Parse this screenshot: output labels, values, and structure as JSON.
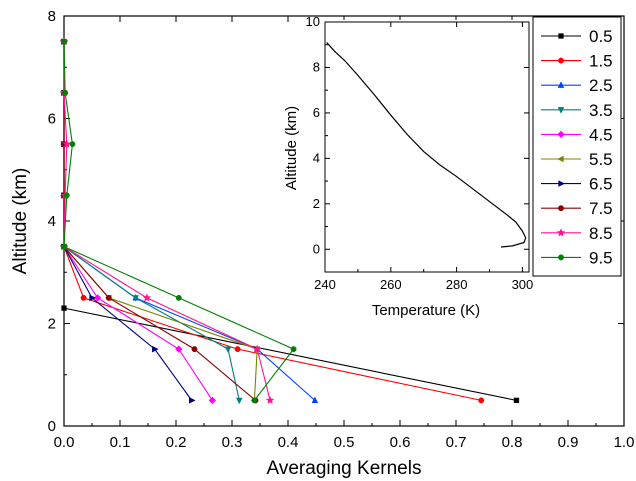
{
  "chart_data": [
    {
      "type": "line",
      "xlabel": "Averaging Kernels",
      "ylabel": "Altitude (km)",
      "xlim": [
        0,
        1.0
      ],
      "ylim": [
        0,
        8
      ],
      "xticks": [
        "0.0",
        "0.1",
        "0.2",
        "0.3",
        "0.4",
        "0.5",
        "0.6",
        "0.7",
        "0.8",
        "0.9",
        "1.0"
      ],
      "yticks": [
        "0",
        "2",
        "4",
        "6",
        "8"
      ],
      "legend_position": "top-right",
      "series": [
        {
          "name": "0.5",
          "color": "#000000",
          "marker": "square",
          "points": [
            [
              0.808,
              0.5
            ],
            [
              0,
              2.3
            ]
          ]
        },
        {
          "name": "1.5",
          "color": "#ff0000",
          "marker": "circle",
          "points": [
            [
              0.745,
              0.5
            ],
            [
              0.31,
              1.5
            ],
            [
              0.035,
              2.5
            ],
            [
              0,
              3.5
            ],
            [
              0,
              4.5
            ],
            [
              0,
              5.5
            ],
            [
              0,
              6.5
            ],
            [
              0,
              7.5
            ]
          ]
        },
        {
          "name": "2.5",
          "color": "#0044ff",
          "marker": "triangle-up",
          "points": [
            [
              0.448,
              0.5
            ],
            [
              0.345,
              1.5
            ],
            [
              0.128,
              2.5
            ],
            [
              0,
              3.5
            ],
            [
              0,
              4.5
            ],
            [
              0,
              5.5
            ],
            [
              0,
              6.5
            ],
            [
              0,
              7.5
            ]
          ]
        },
        {
          "name": "3.5",
          "color": "#008080",
          "marker": "triangle-down",
          "points": [
            [
              0.313,
              0.5
            ],
            [
              0.293,
              1.5
            ],
            [
              0.128,
              2.5
            ],
            [
              0,
              3.5
            ],
            [
              0,
              4.5
            ],
            [
              0,
              5.5
            ],
            [
              0,
              6.5
            ],
            [
              0,
              7.5
            ]
          ]
        },
        {
          "name": "4.5",
          "color": "#ff00ff",
          "marker": "diamond",
          "points": [
            [
              0.265,
              0.5
            ],
            [
              0.205,
              1.5
            ],
            [
              0.06,
              2.5
            ],
            [
              0,
              3.5
            ],
            [
              0,
              4.5
            ],
            [
              0,
              5.5
            ],
            [
              0,
              6.5
            ],
            [
              0,
              7.5
            ]
          ]
        },
        {
          "name": "5.5",
          "color": "#808000",
          "marker": "triangle-left",
          "points": [
            [
              0.34,
              0.5
            ],
            [
              0.345,
              1.5
            ],
            [
              0.08,
              2.5
            ],
            [
              0,
              3.5
            ],
            [
              0,
              4.5
            ],
            [
              0,
              5.5
            ],
            [
              0,
              6.5
            ],
            [
              0,
              7.5
            ]
          ]
        },
        {
          "name": "6.5",
          "color": "#000080",
          "marker": "triangle-right",
          "points": [
            [
              0.228,
              0.5
            ],
            [
              0.162,
              1.5
            ],
            [
              0.05,
              2.5
            ],
            [
              0,
              3.5
            ],
            [
              0,
              4.5
            ],
            [
              0,
              5.5
            ],
            [
              0,
              6.5
            ],
            [
              0,
              7.5
            ]
          ]
        },
        {
          "name": "7.5",
          "color": "#8b0000",
          "marker": "hexagon",
          "points": [
            [
              0.342,
              0.5
            ],
            [
              0.233,
              1.5
            ],
            [
              0.08,
              2.5
            ],
            [
              0,
              3.5
            ],
            [
              0,
              4.5
            ],
            [
              0,
              5.5
            ],
            [
              0,
              6.5
            ],
            [
              0,
              7.5
            ]
          ]
        },
        {
          "name": "8.5",
          "color": "#ff1493",
          "marker": "star",
          "points": [
            [
              0.368,
              0.5
            ],
            [
              0.345,
              1.5
            ],
            [
              0.148,
              2.5
            ],
            [
              0,
              3.5
            ],
            [
              0.002,
              4.5
            ],
            [
              0.005,
              5.5
            ],
            [
              0,
              6.5
            ],
            [
              0,
              7.5
            ]
          ]
        },
        {
          "name": "9.5",
          "color": "#008000",
          "marker": "pentagon",
          "points": [
            [
              0.34,
              0.5
            ],
            [
              0.41,
              1.5
            ],
            [
              0.205,
              2.5
            ],
            [
              0,
              3.5
            ],
            [
              0.005,
              4.5
            ],
            [
              0.015,
              5.5
            ],
            [
              0.002,
              6.5
            ],
            [
              0,
              7.5
            ]
          ]
        }
      ]
    },
    {
      "type": "line",
      "xlabel": "Temperature (K)",
      "ylabel": "Altitude (km)",
      "xlim": [
        240,
        302
      ],
      "ylim": [
        -1,
        10
      ],
      "xticks": [
        "240",
        "260",
        "280",
        "300"
      ],
      "yticks": [
        "0",
        "2",
        "4",
        "6",
        "8",
        "10"
      ],
      "series": [
        {
          "name": "",
          "color": "#000000",
          "points": [
            [
              240.5,
              9.1
            ],
            [
              243,
              8.7
            ],
            [
              246,
              8.3
            ],
            [
              250,
              7.65
            ],
            [
              255,
              6.8
            ],
            [
              260,
              5.9
            ],
            [
              265,
              5.05
            ],
            [
              270,
              4.3
            ],
            [
              275,
              3.7
            ],
            [
              280,
              3.2
            ],
            [
              285,
              2.65
            ],
            [
              290,
              2.1
            ],
            [
              295,
              1.55
            ],
            [
              298,
              1.2
            ],
            [
              300,
              0.8
            ],
            [
              301,
              0.5
            ],
            [
              300.5,
              0.3
            ],
            [
              297,
              0.15
            ],
            [
              293.5,
              0.1
            ]
          ]
        }
      ]
    }
  ]
}
